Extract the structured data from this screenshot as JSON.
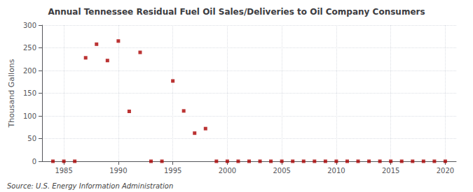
{
  "chart_data": {
    "type": "scatter",
    "title": "Annual Tennessee Residual Fuel Oil Sales/Deliveries to Oil Company Consumers",
    "ylabel": "Thousand Gallons",
    "annotations": [
      "Source: U.S. Energy Information Administration"
    ],
    "x": [
      1984,
      1985,
      1986,
      1987,
      1988,
      1989,
      1990,
      1991,
      1992,
      1993,
      1994,
      1995,
      1996,
      1997,
      1998,
      1999,
      2000,
      2001,
      2002,
      2003,
      2004,
      2005,
      2006,
      2007,
      2008,
      2009,
      2010,
      2011,
      2012,
      2013,
      2014,
      2015,
      2016,
      2017,
      2018,
      2019,
      2020
    ],
    "values": [
      0,
      0,
      0,
      228,
      258,
      222,
      265,
      110,
      240,
      0,
      0,
      177,
      111,
      62,
      72,
      0,
      0,
      0,
      0,
      0,
      0,
      0,
      0,
      0,
      0,
      0,
      0,
      0,
      0,
      0,
      0,
      0,
      0,
      0,
      0,
      0,
      0
    ],
    "color": "#aa0000",
    "marker": "square",
    "xlim": [
      1983,
      2021
    ],
    "ylim": [
      0,
      300
    ],
    "xticks": [
      1985,
      1990,
      1995,
      2000,
      2005,
      2010,
      2015,
      2020
    ],
    "yticks": [
      0,
      50,
      100,
      150,
      200,
      250,
      300
    ],
    "grid": true
  }
}
